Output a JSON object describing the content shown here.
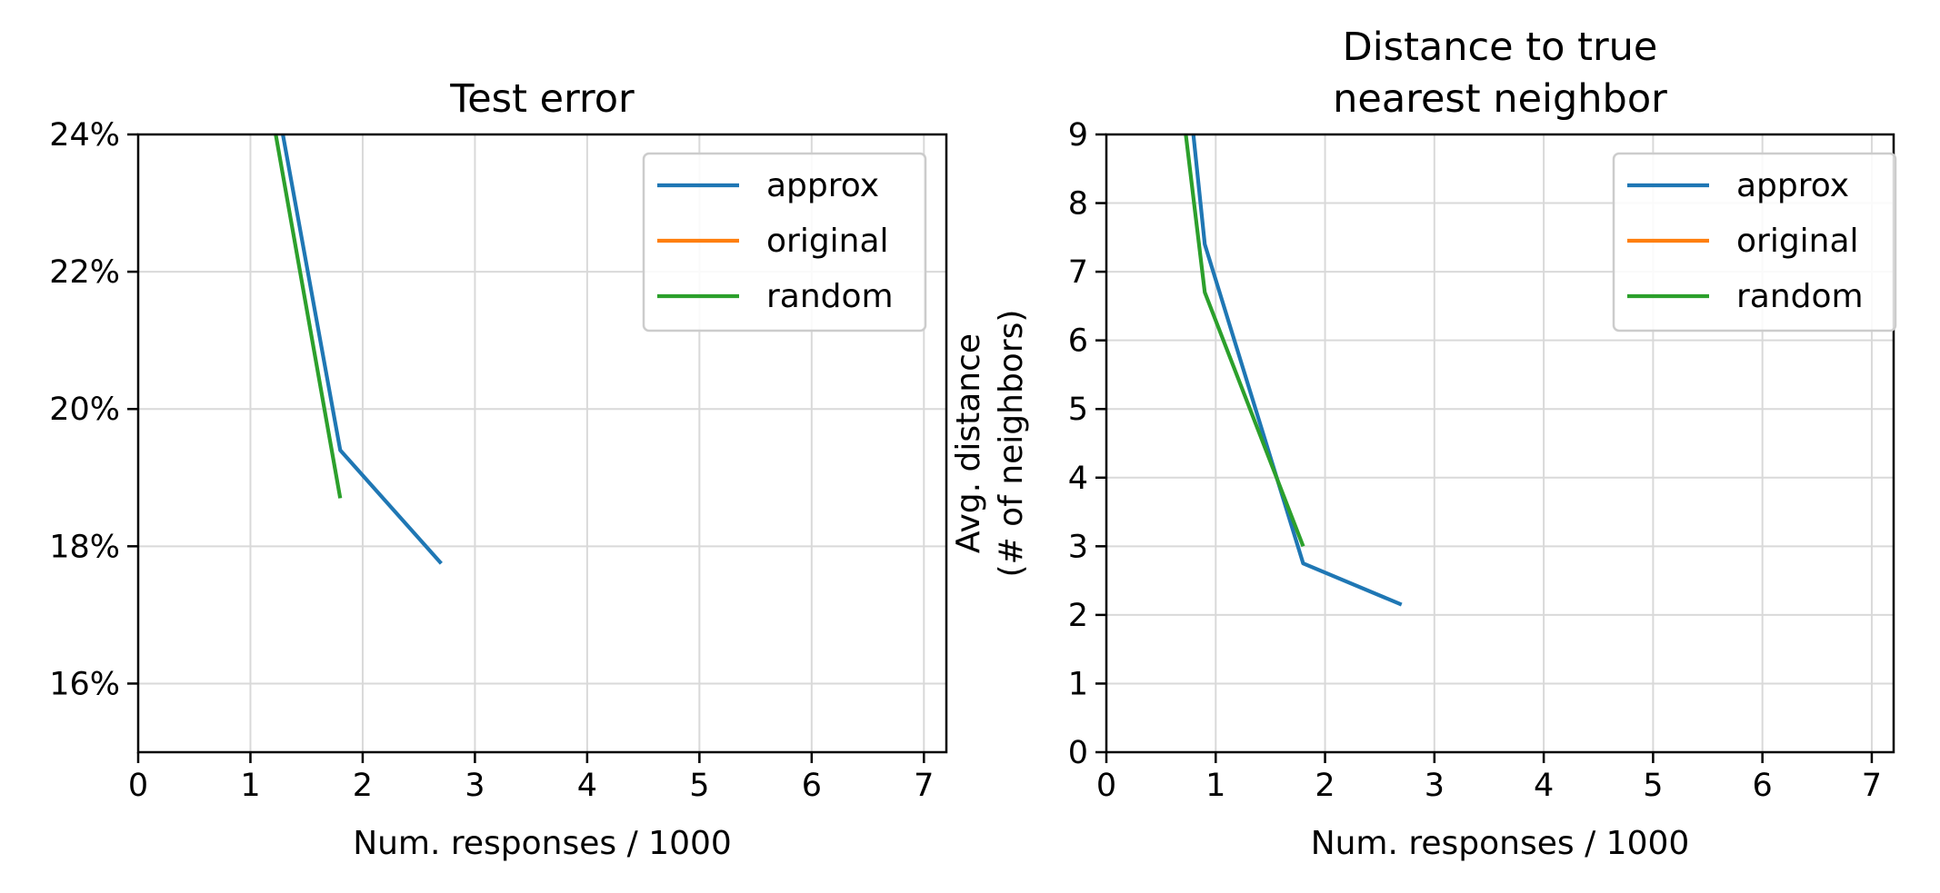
{
  "chart_data": [
    {
      "type": "line",
      "title": "Test error",
      "xlabel": "Num. responses / 1000",
      "ylabel": "",
      "xlim": [
        0,
        7.2
      ],
      "ylim": [
        15,
        24
      ],
      "xticks": [
        "0",
        "1",
        "2",
        "3",
        "4",
        "5",
        "6",
        "7"
      ],
      "yticks": [
        {
          "value": 16,
          "label": "16%"
        },
        {
          "value": 18,
          "label": "18%"
        },
        {
          "value": 20,
          "label": "20%"
        },
        {
          "value": 22,
          "label": "22%"
        },
        {
          "value": 24,
          "label": "24%"
        }
      ],
      "grid": true,
      "legend_position": "top-right",
      "series": [
        {
          "name": "approx",
          "color": "#1f77b4",
          "x": [
            0.9,
            1.8,
            2.7
          ],
          "y": [
            27.5,
            19.4,
            17.75
          ]
        },
        {
          "name": "original",
          "color": "#ff7f0e",
          "x": [],
          "y": []
        },
        {
          "name": "random",
          "color": "#2ca02c",
          "x": [
            0.9,
            1.8
          ],
          "y": [
            27.0,
            18.7
          ]
        }
      ]
    },
    {
      "type": "line",
      "title": "Distance to true\nnearest neighbor",
      "title_lines": [
        "Distance to true",
        "nearest neighbor"
      ],
      "xlabel": "Num. responses / 1000",
      "ylabel": "Avg. distance\n(# of neighbors)",
      "ylabel_lines": [
        "Avg. distance",
        "(# of neighbors)"
      ],
      "xlim": [
        0,
        7.2
      ],
      "ylim": [
        0,
        9
      ],
      "xticks": [
        "0",
        "1",
        "2",
        "3",
        "4",
        "5",
        "6",
        "7"
      ],
      "yticks": [
        {
          "value": 0,
          "label": "0"
        },
        {
          "value": 1,
          "label": "1"
        },
        {
          "value": 2,
          "label": "2"
        },
        {
          "value": 3,
          "label": "3"
        },
        {
          "value": 4,
          "label": "4"
        },
        {
          "value": 5,
          "label": "5"
        },
        {
          "value": 6,
          "label": "6"
        },
        {
          "value": 7,
          "label": "7"
        },
        {
          "value": 8,
          "label": "8"
        },
        {
          "value": 9,
          "label": "9"
        }
      ],
      "grid": true,
      "legend_position": "top-right",
      "series": [
        {
          "name": "approx",
          "color": "#1f77b4",
          "x": [
            0.6,
            0.9,
            1.8,
            2.7
          ],
          "y": [
            12.0,
            7.4,
            2.75,
            2.15
          ]
        },
        {
          "name": "original",
          "color": "#ff7f0e",
          "x": [],
          "y": []
        },
        {
          "name": "random",
          "color": "#2ca02c",
          "x": [
            0.5,
            0.9,
            1.8
          ],
          "y": [
            12.0,
            6.7,
            3.0
          ]
        }
      ]
    }
  ]
}
